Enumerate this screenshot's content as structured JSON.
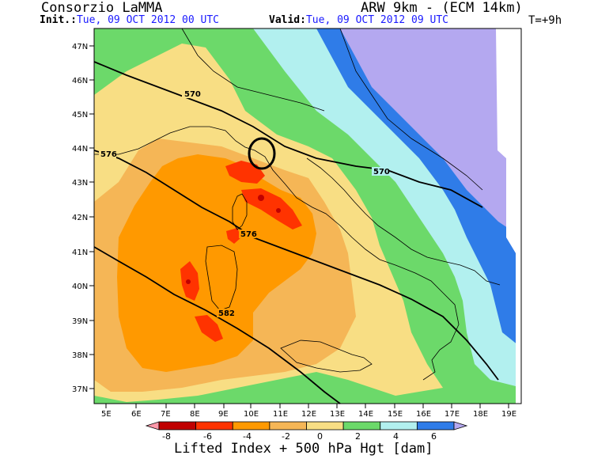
{
  "header": {
    "organization": "Consorzio LaMMA",
    "model": "ARW 9km - (ECM 14km)",
    "init_label": "Init.:",
    "init_value": "Tue, 09 OCT 2012  00 UTC",
    "valid_label": "Valid:",
    "valid_value": "Tue, 09 OCT 2012  09 UTC",
    "forecast_step": "T=+9h"
  },
  "axes": {
    "latitude_ticks": [
      "47N",
      "46N",
      "45N",
      "44N",
      "43N",
      "42N",
      "41N",
      "40N",
      "39N",
      "38N",
      "37N"
    ],
    "longitude_ticks": [
      "5E",
      "6E",
      "7E",
      "8E",
      "9E",
      "10E",
      "11E",
      "12E",
      "13E",
      "14E",
      "15E",
      "16E",
      "17E",
      "18E",
      "19E"
    ]
  },
  "contours": {
    "labels": [
      "570",
      "576",
      "570",
      "576",
      "582"
    ]
  },
  "colorbar": {
    "ticks": [
      "-8",
      "-6",
      "-4",
      "-2",
      "0",
      "2",
      "4",
      "6"
    ],
    "colors": [
      "#ff99aa",
      "#c00000",
      "#ff3300",
      "#ff9900",
      "#f5b656",
      "#f8de84",
      "#6cd96a",
      "#b2f0ef",
      "#2f7ce8",
      "#b4a8f0"
    ],
    "title": "Lifted Index + 500 hPa Hgt [dam]"
  },
  "colors": {
    "lavender": "#b4a8f0",
    "blue": "#2f7ce8",
    "cyan": "#b2f0ef",
    "green": "#6cd96a",
    "pale_yellow": "#f8de84",
    "light_orange": "#f5b656",
    "orange": "#ff9900",
    "red": "#ff3300",
    "dark_red": "#c00000"
  },
  "annotation": {
    "shape": "circle"
  }
}
